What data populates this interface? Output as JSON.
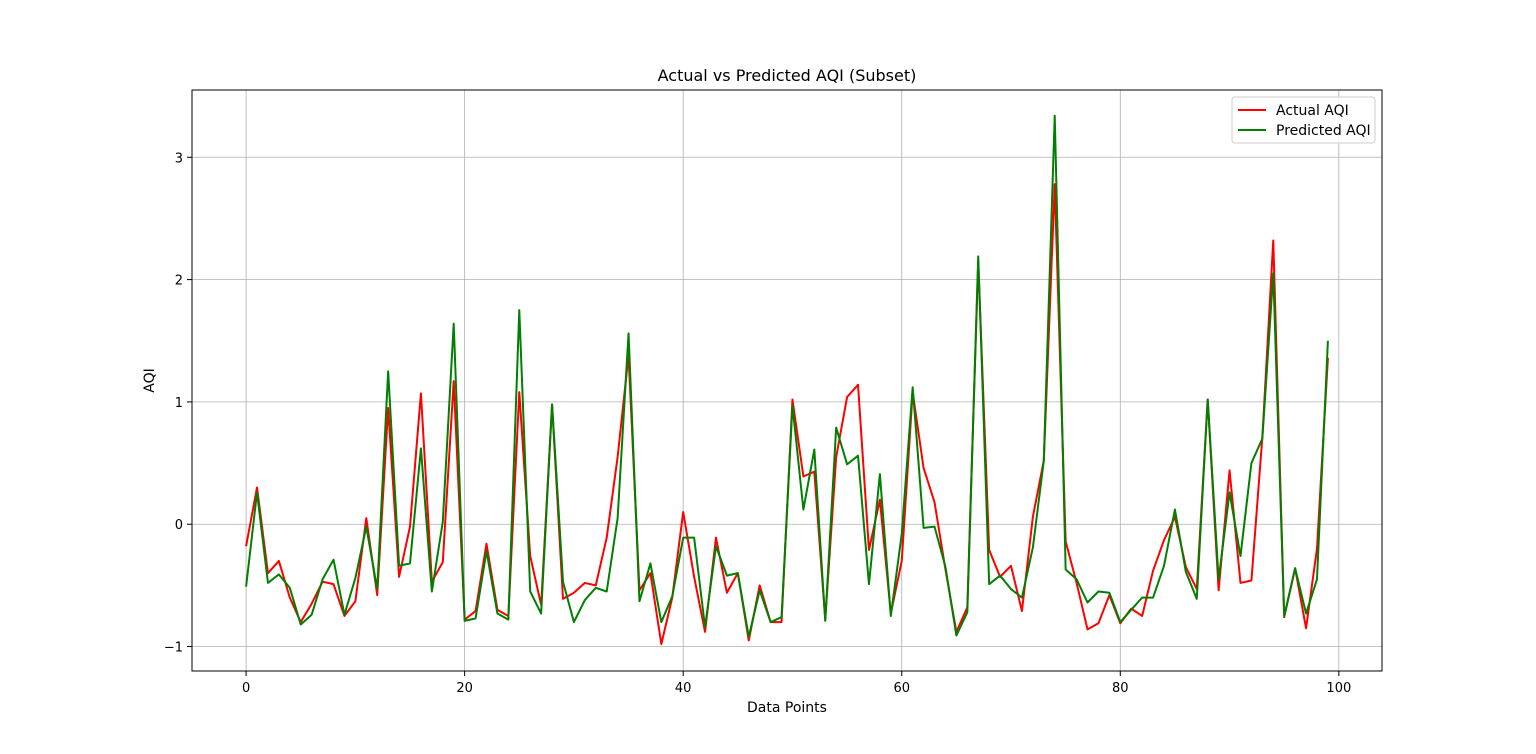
{
  "chart_data": {
    "type": "line",
    "title": "Actual vs Predicted AQI (Subset)",
    "xlabel": "Data Points",
    "ylabel": "AQI",
    "xlim": [
      -4.95,
      103.95
    ],
    "ylim": [
      -1.2,
      3.55
    ],
    "xticks": [
      0,
      20,
      40,
      60,
      80,
      100
    ],
    "yticks": [
      -1,
      0,
      1,
      2,
      3
    ],
    "grid": true,
    "legend_position": "top-right",
    "x": [
      0,
      1,
      2,
      3,
      4,
      5,
      6,
      7,
      8,
      9,
      10,
      11,
      12,
      13,
      14,
      15,
      16,
      17,
      18,
      19,
      20,
      21,
      22,
      23,
      24,
      25,
      26,
      27,
      28,
      29,
      30,
      31,
      32,
      33,
      34,
      35,
      36,
      37,
      38,
      39,
      40,
      41,
      42,
      43,
      44,
      45,
      46,
      47,
      48,
      49,
      50,
      51,
      52,
      53,
      54,
      55,
      56,
      57,
      58,
      59,
      60,
      61,
      62,
      63,
      64,
      65,
      66,
      67,
      68,
      69,
      70,
      71,
      72,
      73,
      74,
      75,
      76,
      77,
      78,
      79,
      80,
      81,
      82,
      83,
      84,
      85,
      86,
      87,
      88,
      89,
      90,
      91,
      92,
      93,
      94,
      95,
      96,
      97,
      98,
      99
    ],
    "series": [
      {
        "name": "Actual AQI",
        "color": "#ff0000",
        "values": [
          -0.18,
          0.3,
          -0.4,
          -0.3,
          -0.6,
          -0.8,
          -0.65,
          -0.47,
          -0.49,
          -0.75,
          -0.63,
          0.05,
          -0.58,
          0.95,
          -0.43,
          -0.02,
          1.07,
          -0.47,
          -0.31,
          1.17,
          -0.78,
          -0.71,
          -0.16,
          -0.7,
          -0.75,
          1.08,
          -0.26,
          -0.66,
          0.98,
          -0.61,
          -0.56,
          -0.48,
          -0.5,
          -0.11,
          0.55,
          1.38,
          -0.54,
          -0.4,
          -0.98,
          -0.6,
          0.1,
          -0.43,
          -0.88,
          -0.11,
          -0.56,
          -0.4,
          -0.95,
          -0.5,
          -0.8,
          -0.8,
          1.02,
          0.39,
          0.43,
          -0.78,
          0.55,
          1.04,
          1.14,
          -0.21,
          0.2,
          -0.73,
          -0.3,
          1.08,
          0.46,
          0.18,
          -0.37,
          -0.88,
          -0.68,
          2.15,
          -0.21,
          -0.43,
          -0.34,
          -0.71,
          0.06,
          0.52,
          2.78,
          -0.14,
          -0.48,
          -0.86,
          -0.81,
          -0.58,
          -0.81,
          -0.69,
          -0.75,
          -0.38,
          -0.13,
          0.06,
          -0.35,
          -0.53,
          1.02,
          -0.54,
          0.44,
          -0.48,
          -0.46,
          0.71,
          2.32,
          -0.76,
          -0.36,
          -0.85,
          -0.2,
          1.36
        ]
      },
      {
        "name": "Predicted AQI",
        "color": "#008000",
        "values": [
          -0.51,
          0.26,
          -0.48,
          -0.41,
          -0.52,
          -0.82,
          -0.74,
          -0.45,
          -0.29,
          -0.74,
          -0.44,
          -0.02,
          -0.53,
          1.25,
          -0.34,
          -0.32,
          0.62,
          -0.55,
          0.02,
          1.64,
          -0.79,
          -0.77,
          -0.22,
          -0.73,
          -0.78,
          1.75,
          -0.55,
          -0.73,
          0.98,
          -0.47,
          -0.8,
          -0.62,
          -0.52,
          -0.55,
          0.05,
          1.56,
          -0.63,
          -0.32,
          -0.8,
          -0.59,
          -0.11,
          -0.11,
          -0.84,
          -0.18,
          -0.42,
          -0.4,
          -0.92,
          -0.54,
          -0.8,
          -0.76,
          0.97,
          0.12,
          0.61,
          -0.79,
          0.79,
          0.49,
          0.56,
          -0.49,
          0.41,
          -0.75,
          -0.08,
          1.12,
          -0.03,
          -0.02,
          -0.35,
          -0.91,
          -0.72,
          2.19,
          -0.49,
          -0.42,
          -0.53,
          -0.6,
          -0.19,
          0.52,
          3.34,
          -0.37,
          -0.45,
          -0.64,
          -0.55,
          -0.56,
          -0.8,
          -0.7,
          -0.6,
          -0.6,
          -0.34,
          0.12,
          -0.39,
          -0.61,
          1.02,
          -0.45,
          0.26,
          -0.26,
          0.5,
          0.7,
          2.05,
          -0.75,
          -0.36,
          -0.73,
          -0.45,
          1.5
        ]
      }
    ]
  }
}
